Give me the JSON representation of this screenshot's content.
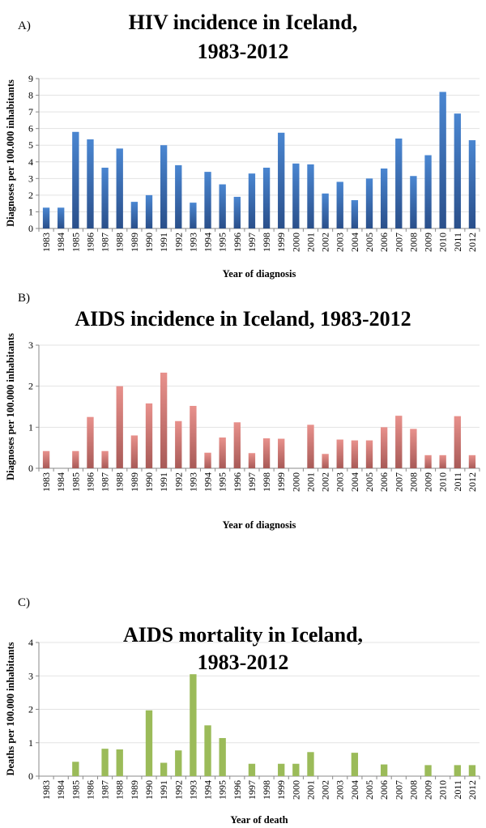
{
  "chart_data": [
    {
      "panel_label": "A)",
      "type": "bar",
      "title_lines": [
        "HIV incidence in Iceland,",
        "1983-2012"
      ],
      "xlabel": "Year of diagnosis",
      "ylabel": "Diagnoses per 100.000 inhabitants",
      "ylim": [
        0,
        9
      ],
      "yticks": [
        "0",
        "1",
        "2",
        "3",
        "4",
        "5",
        "6",
        "7",
        "8",
        "9"
      ],
      "grid": true,
      "categories": [
        "1983",
        "1984",
        "1985",
        "1986",
        "1987",
        "1988",
        "1989",
        "1990",
        "1991",
        "1992",
        "1993",
        "1994",
        "1995",
        "1996",
        "1997",
        "1998",
        "1999",
        "2000",
        "2001",
        "2002",
        "2003",
        "2004",
        "2005",
        "2006",
        "2007",
        "2008",
        "2009",
        "2010",
        "2011",
        "2012"
      ],
      "values": [
        1.25,
        1.25,
        5.8,
        5.35,
        3.65,
        4.8,
        1.6,
        2.0,
        5.0,
        3.8,
        1.55,
        3.4,
        2.65,
        1.9,
        3.3,
        3.65,
        5.75,
        3.9,
        3.85,
        2.1,
        2.8,
        1.7,
        3.0,
        3.6,
        5.4,
        3.15,
        4.4,
        8.2,
        6.9,
        5.3
      ],
      "color": "#4a86d1",
      "color_dark": "#2a4f8a"
    },
    {
      "panel_label": "B)",
      "type": "bar",
      "title_lines": [
        "AIDS incidence in Iceland, 1983-2012"
      ],
      "xlabel": "Year of diagnosis",
      "ylabel": "Diagnoses per 100.000 inhabitants",
      "ylim": [
        0,
        3
      ],
      "yticks": [
        "0",
        "1",
        "2",
        "3"
      ],
      "grid": true,
      "categories": [
        "1983",
        "1984",
        "1985",
        "1986",
        "1987",
        "1988",
        "1989",
        "1990",
        "1991",
        "1992",
        "1993",
        "1994",
        "1995",
        "1996",
        "1997",
        "1998",
        "1999",
        "2000",
        "2001",
        "2002",
        "2003",
        "2004",
        "2005",
        "2006",
        "2007",
        "2008",
        "2009",
        "2010",
        "2011",
        "2012"
      ],
      "values": [
        0.42,
        0,
        0.42,
        1.25,
        0.42,
        2.0,
        0.8,
        1.58,
        2.33,
        1.15,
        1.52,
        0.38,
        0.75,
        1.12,
        0.37,
        0.73,
        0.72,
        0,
        1.06,
        0.35,
        0.7,
        0.68,
        0.68,
        1.0,
        1.28,
        0.96,
        0.32,
        0.32,
        1.27,
        0.32
      ],
      "color": "#e8918c",
      "color_dark": "#a85a57"
    },
    {
      "panel_label": "C)",
      "type": "bar",
      "title_lines": [
        "AIDS mortality in Iceland,",
        "1983-2012"
      ],
      "xlabel": "Year of death",
      "ylabel": "Deaths per 100.000 inhabitants",
      "ylim": [
        0,
        4
      ],
      "yticks": [
        "0",
        "1",
        "2",
        "3",
        "4"
      ],
      "grid": true,
      "categories": [
        "1983",
        "1984",
        "1985",
        "1986",
        "1987",
        "1988",
        "1989",
        "1990",
        "1991",
        "1992",
        "1993",
        "1994",
        "1995",
        "1996",
        "1997",
        "1998",
        "1999",
        "2000",
        "2001",
        "2002",
        "2003",
        "2004",
        "2005",
        "2006",
        "2007",
        "2008",
        "2009",
        "2010",
        "2011",
        "2012"
      ],
      "values": [
        0,
        0,
        0.43,
        0,
        0.82,
        0.8,
        0,
        1.97,
        0.4,
        0.77,
        3.05,
        1.52,
        1.14,
        0,
        0.37,
        0,
        0.37,
        0.37,
        0.72,
        0,
        0,
        0.7,
        0,
        0.35,
        0,
        0,
        0.33,
        0,
        0.33,
        0.33
      ],
      "color": "#9bbb59",
      "color_dark": "#9bbb59"
    }
  ]
}
